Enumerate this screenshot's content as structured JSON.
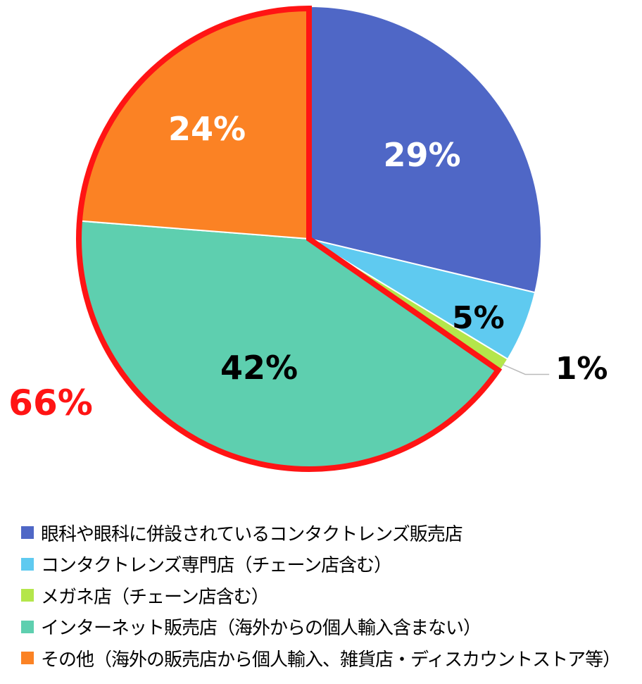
{
  "chart_data": {
    "type": "pie",
    "title": "",
    "slices": [
      {
        "label": "眼科や眼科に併設されているコンタクトレンズ販売店",
        "value": 29,
        "value_label": "29%",
        "color": "#4f67c6",
        "label_color": "#ffffff"
      },
      {
        "label": "コンタクトレンズ専門店（チェーン店含む）",
        "value": 5,
        "value_label": "5%",
        "color": "#5fcaf0",
        "label_color": "#000000"
      },
      {
        "label": "メガネ店（チェーン店含む）",
        "value": 1,
        "value_label": "1%",
        "color": "#b4e64b",
        "label_color": "#000000"
      },
      {
        "label": "インターネット販売店（海外からの個人輸入含まない）",
        "value": 42,
        "value_label": "42%",
        "color": "#5ecfaf",
        "label_color": "#000000"
      },
      {
        "label": "その他（海外の販売店から個人輸入、雑貨店・ディスカウントストア等）",
        "value": 24,
        "value_label": "24%",
        "color": "#fb8224",
        "label_color": "#ffffff"
      }
    ],
    "legend_position": "bottom",
    "highlight": {
      "label": "66%",
      "slices": [
        3,
        4
      ],
      "color": "#ff1414"
    }
  }
}
